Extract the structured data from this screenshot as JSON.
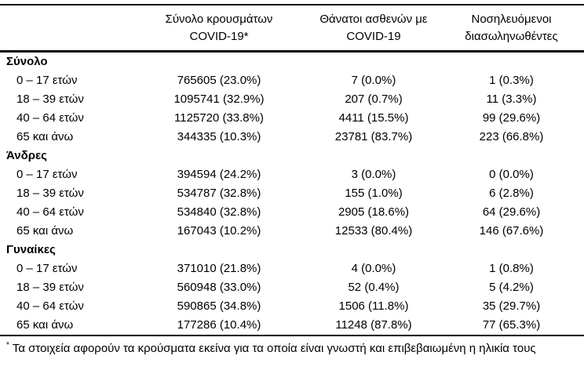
{
  "colors": {
    "background": "#ffffff",
    "text": "#000000",
    "rule": "#000000"
  },
  "table": {
    "columns": [
      {
        "line1": "",
        "line2": ""
      },
      {
        "line1": "Σύνολο κρουσμάτων",
        "line2": "COVID-19*"
      },
      {
        "line1": "Θάνατοι ασθενών με",
        "line2": "COVID-19"
      },
      {
        "line1": "Νοσηλευόμενοι",
        "line2": "διασωληνωθέντες"
      }
    ],
    "groups": [
      {
        "label": "Σύνολο",
        "rows": [
          {
            "label": "0 – 17 ετών",
            "cases": "765605 (23.0%)",
            "deaths": "7 (0.0%)",
            "intubated": "1 (0.3%)"
          },
          {
            "label": "18 – 39 ετών",
            "cases": "1095741 (32.9%)",
            "deaths": "207 (0.7%)",
            "intubated": "11 (3.3%)"
          },
          {
            "label": "40 – 64 ετών",
            "cases": "1125720 (33.8%)",
            "deaths": "4411 (15.5%)",
            "intubated": "99 (29.6%)"
          },
          {
            "label": "65 και άνω",
            "cases": "344335 (10.3%)",
            "deaths": "23781 (83.7%)",
            "intubated": "223 (66.8%)"
          }
        ]
      },
      {
        "label": "Άνδρες",
        "rows": [
          {
            "label": "0 – 17 ετών",
            "cases": "394594 (24.2%)",
            "deaths": "3 (0.0%)",
            "intubated": "0 (0.0%)"
          },
          {
            "label": "18 – 39 ετών",
            "cases": "534787 (32.8%)",
            "deaths": "155 (1.0%)",
            "intubated": "6 (2.8%)"
          },
          {
            "label": "40 – 64 ετών",
            "cases": "534840 (32.8%)",
            "deaths": "2905 (18.6%)",
            "intubated": "64 (29.6%)"
          },
          {
            "label": "65 και άνω",
            "cases": "167043 (10.2%)",
            "deaths": "12533 (80.4%)",
            "intubated": "146 (67.6%)"
          }
        ]
      },
      {
        "label": "Γυναίκες",
        "rows": [
          {
            "label": "0 – 17 ετών",
            "cases": "371010 (21.8%)",
            "deaths": "4 (0.0%)",
            "intubated": "1 (0.8%)"
          },
          {
            "label": "18 – 39 ετών",
            "cases": "560948 (33.0%)",
            "deaths": "52 (0.4%)",
            "intubated": "5 (4.2%)"
          },
          {
            "label": "40 – 64 ετών",
            "cases": "590865 (34.8%)",
            "deaths": "1506 (11.8%)",
            "intubated": "35 (29.7%)"
          },
          {
            "label": "65 και άνω",
            "cases": "177286 (10.4%)",
            "deaths": "11248 (87.8%)",
            "intubated": "77 (65.3%)"
          }
        ]
      }
    ],
    "footnote": {
      "marker": "*",
      "text": "Τα στοιχεία αφορούν τα κρούσματα εκείνα για τα οποία είναι γνωστή και επιβεβαιωμένη η ηλικία τους"
    }
  }
}
